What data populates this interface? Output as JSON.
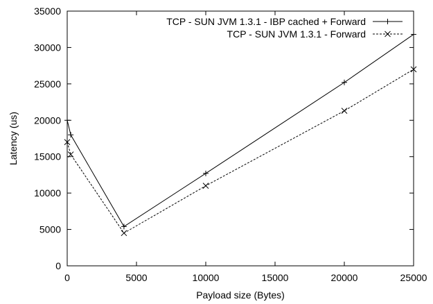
{
  "chart_data": {
    "type": "line",
    "xlabel": "Payload size (Bytes)",
    "ylabel": "Latency (us)",
    "xlim": [
      0,
      25000
    ],
    "ylim": [
      0,
      35000
    ],
    "xticks": [
      0,
      5000,
      10000,
      15000,
      20000,
      25000
    ],
    "yticks": [
      0,
      5000,
      10000,
      15000,
      20000,
      25000,
      30000,
      35000
    ],
    "grid": false,
    "legend_position": "top-right",
    "series": [
      {
        "name": "TCP - SUN JVM 1.3.1 - IBP cached + Forward",
        "line_style": "solid",
        "marker": "plus",
        "x": [
          1,
          256,
          4096,
          10000,
          20000,
          25000
        ],
        "y": [
          20000,
          18000,
          5400,
          12700,
          25200,
          31800
        ]
      },
      {
        "name": "TCP - SUN JVM 1.3.1 - Forward",
        "line_style": "dashed",
        "marker": "cross",
        "x": [
          1,
          256,
          4096,
          10000,
          20000,
          25000
        ],
        "y": [
          17000,
          15300,
          4500,
          11000,
          21300,
          27000
        ]
      }
    ]
  }
}
